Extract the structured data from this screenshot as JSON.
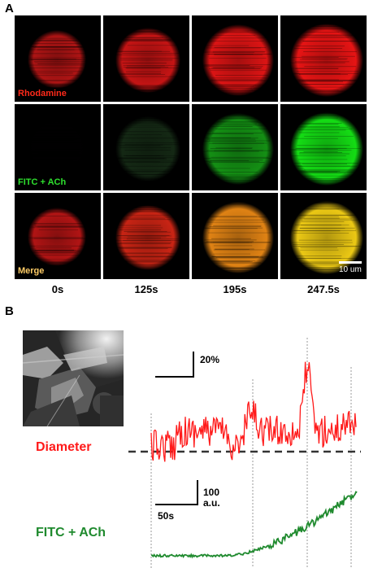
{
  "panel_a": {
    "letter": "A",
    "rows": [
      {
        "label": "Rhodamine",
        "label_color": "#ff2a1a"
      },
      {
        "label": "FITC + ACh",
        "label_color": "#2ee02e"
      },
      {
        "label": "Merge",
        "label_color": "#ffcc66"
      }
    ],
    "time_points": [
      "0s",
      "125s",
      "195s",
      "247.5s"
    ],
    "scale_bar_label": "10 um"
  },
  "panel_b": {
    "letter": "B",
    "diameter_label": "Diameter",
    "diameter_color": "#ff1a1a",
    "fitc_label": "FITC + ACh",
    "fitc_color": "#1f8a2e",
    "diameter_scale_label": "20%",
    "fitc_scale_value": "100",
    "fitc_scale_unit": "a.u.",
    "time_scale_label": "50s"
  }
}
